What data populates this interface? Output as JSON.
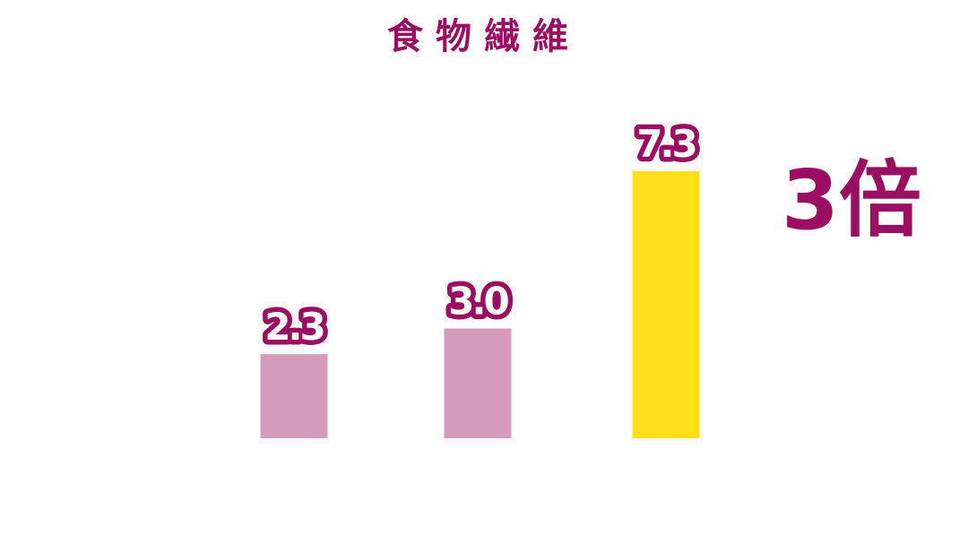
{
  "chart_data": {
    "type": "bar",
    "title": "食物繊維",
    "categories": [
      "",
      "",
      ""
    ],
    "values": [
      2.3,
      3.0,
      7.3
    ],
    "value_labels": [
      "2.3",
      "3.0",
      "7.3"
    ],
    "ylim": [
      0,
      7.3
    ],
    "grid": false,
    "annotation": "3倍",
    "colors": {
      "bars": [
        "#d59bbb",
        "#d59bbb",
        "#ffe019"
      ],
      "accent": "#9b0f62"
    }
  }
}
